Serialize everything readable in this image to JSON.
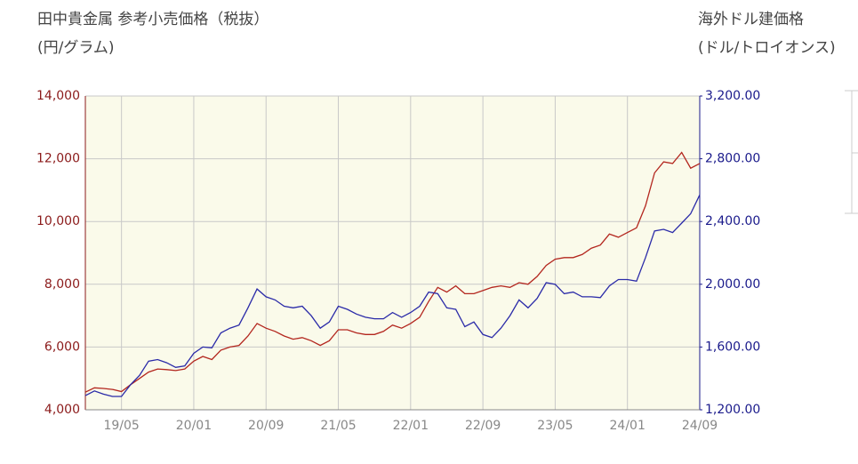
{
  "chart_data": {
    "type": "line",
    "title": "田中貴金属 参考小売価格（税抜）",
    "ylabel": "(円/グラム)",
    "y2title": "海外ドル建価格",
    "y2label": "(ドル/トロイオンス)",
    "categories": [
      null,
      null,
      null,
      null,
      "19/05",
      null,
      null,
      null,
      null,
      null,
      null,
      null,
      "20/01",
      null,
      null,
      null,
      null,
      null,
      null,
      null,
      "20/09",
      null,
      null,
      null,
      null,
      null,
      null,
      null,
      "21/05",
      null,
      null,
      null,
      null,
      null,
      null,
      null,
      "22/01",
      null,
      null,
      null,
      null,
      null,
      null,
      null,
      "22/09",
      null,
      null,
      null,
      null,
      null,
      null,
      null,
      "23/05",
      null,
      null,
      null,
      null,
      null,
      null,
      null,
      "24/01",
      null,
      null,
      null,
      null,
      null,
      null,
      null,
      "24/09"
    ],
    "series": [
      {
        "color": "#b3261e",
        "values": [
          4560,
          4700,
          4680,
          4650,
          4580,
          4800,
          5000,
          5200,
          5300,
          5280,
          5250,
          5300,
          5550,
          5700,
          5600,
          5900,
          6000,
          6050,
          6350,
          6750,
          6600,
          6500,
          6350,
          6250,
          6300,
          6200,
          6050,
          6200,
          6550,
          6550,
          6450,
          6400,
          6400,
          6500,
          6700,
          6600,
          6750,
          6950,
          7450,
          7900,
          7750,
          7950,
          7700,
          7700,
          7800,
          7900,
          7950,
          7900,
          8050,
          8000,
          8250,
          8600,
          8800,
          8850,
          8850,
          8950,
          9150,
          9250,
          9600,
          9500,
          9650,
          9800,
          10500,
          11550,
          11900,
          11850,
          12200,
          11700,
          11850
        ]
      },
      {
        "color": "#2a2aa8",
        "axis": "y2",
        "values": [
          1290,
          1320,
          1300,
          1285,
          1285,
          1360,
          1420,
          1510,
          1520,
          1500,
          1470,
          1480,
          1560,
          1600,
          1595,
          1690,
          1720,
          1740,
          1850,
          1970,
          1920,
          1900,
          1860,
          1850,
          1860,
          1800,
          1720,
          1760,
          1860,
          1840,
          1810,
          1790,
          1780,
          1780,
          1820,
          1790,
          1820,
          1860,
          1950,
          1940,
          1850,
          1840,
          1730,
          1760,
          1680,
          1660,
          1720,
          1800,
          1900,
          1850,
          1910,
          2010,
          2000,
          1940,
          1950,
          1920,
          1920,
          1915,
          1990,
          2030,
          2030,
          2020,
          2170,
          2340,
          2350,
          2330,
          2390,
          2450,
          2570
        ]
      }
    ],
    "ylim": [
      4000,
      14000
    ],
    "yticks": [
      {
        "value": 4000,
        "label": "4,000"
      },
      {
        "value": 6000,
        "label": "6,000"
      },
      {
        "value": 8000,
        "label": "8,000"
      },
      {
        "value": 10000,
        "label": "10,000"
      },
      {
        "value": 12000,
        "label": "12,000"
      },
      {
        "value": 14000,
        "label": "14,000"
      }
    ],
    "y2lim": [
      1200,
      3200
    ],
    "y2ticks": [
      {
        "value": 1200,
        "label": "1,200.00"
      },
      {
        "value": 1600,
        "label": "1,600.00"
      },
      {
        "value": 2000,
        "label": "2,000.00"
      },
      {
        "value": 2400,
        "label": "2,400.00"
      },
      {
        "value": 2800,
        "label": "2,800.00"
      },
      {
        "value": 3200,
        "label": "3,200.00"
      }
    ],
    "grid": true
  }
}
